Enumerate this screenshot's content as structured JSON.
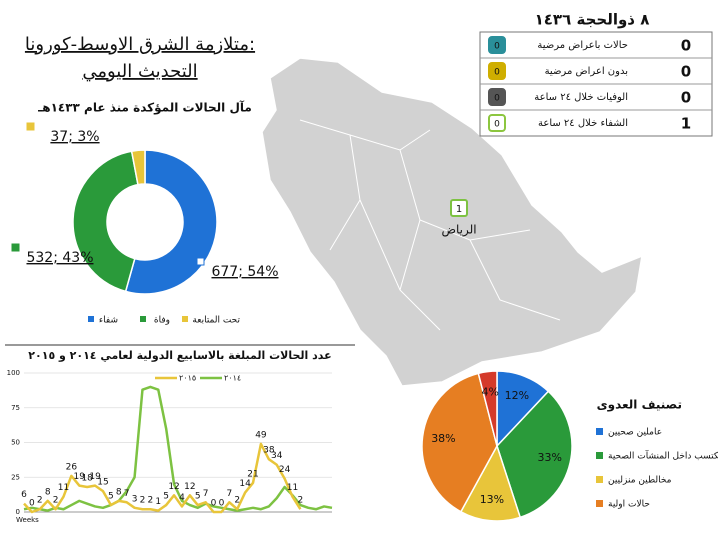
{
  "header": {
    "title_line1": "متلازمة الشرق الاوسط-كورونا:",
    "title_line2": "التحديث اليومي"
  },
  "status": {
    "date": "٨ ذوالحجة ١٤٣٦",
    "rows": [
      {
        "label": "حالات باعراض مرضية",
        "icon": "0",
        "value": 0,
        "color": "#2a8f9a"
      },
      {
        "label": "بدون اعراض مرضية",
        "icon": "0",
        "value": 0,
        "color": "#cfae00"
      },
      {
        "label": "الوفيات خلال ٢٤ ساعة",
        "icon": "0",
        "value": 0,
        "color": "#555555"
      },
      {
        "label": "الشفاء خلال ٢٤ ساعة",
        "icon": "0",
        "value": 1,
        "color": "#8cc63f"
      }
    ]
  },
  "map": {
    "marker": "1",
    "city": "الرياض"
  },
  "chart_data": [
    {
      "type": "donut",
      "title": "مآل الحالات المؤكدة منذ عام ١٤٣٣هـ",
      "categories": [
        "شفاء",
        "وفاة",
        "تحت المتابعة"
      ],
      "values": [
        677,
        532,
        37
      ],
      "value_labels": [
        "677; 54%",
        "532; 43%",
        "37; 3%"
      ],
      "colors": [
        "#1f72d6",
        "#2a9a3a",
        "#e8c53a"
      ]
    },
    {
      "type": "line",
      "title": "عدد الحالات المبلغة بالاسابيع الدولية لعامي ٢٠١٤ و ٢٠١٥",
      "x_label": "Weeks",
      "ylim": [
        0,
        100
      ],
      "yticks": [
        0,
        25,
        50,
        75,
        100
      ],
      "grid": true,
      "series": [
        {
          "name": "٢٠١٤",
          "color": "#7dc242",
          "show_values": false,
          "values": [
            2,
            3,
            2,
            1,
            3,
            2,
            5,
            8,
            6,
            4,
            3,
            5,
            8,
            15,
            25,
            88,
            90,
            88,
            60,
            20,
            8,
            5,
            3,
            6,
            4,
            3,
            2,
            1,
            2,
            3,
            2,
            4,
            10,
            18,
            12,
            5,
            3,
            2,
            4,
            3
          ]
        },
        {
          "name": "٢٠١٥",
          "color": "#e8c53a",
          "show_values": true,
          "values": [
            6,
            0,
            2,
            8,
            2,
            11,
            26,
            19,
            18,
            19,
            15,
            5,
            8,
            7,
            3,
            2,
            2,
            1,
            5,
            12,
            4,
            12,
            5,
            7,
            0,
            0,
            7,
            2,
            14,
            21,
            49,
            38,
            34,
            24,
            11,
            2,
            null,
            null,
            null,
            null
          ]
        }
      ]
    },
    {
      "type": "pie",
      "title": "تصنيف العدوى",
      "categories": [
        "عاملين صحيين",
        "مكتسب داخل المنشآت الصحية",
        "مخالطين منزليين",
        "حالات اولية",
        null
      ],
      "values": [
        12,
        33,
        13,
        38,
        4
      ],
      "value_labels": [
        "12%",
        "33%",
        "13%",
        "38%",
        "4%"
      ],
      "colors": [
        "#1f72d6",
        "#2a9a3a",
        "#e8c53a",
        "#e67e22",
        "#d43a2a"
      ]
    }
  ]
}
